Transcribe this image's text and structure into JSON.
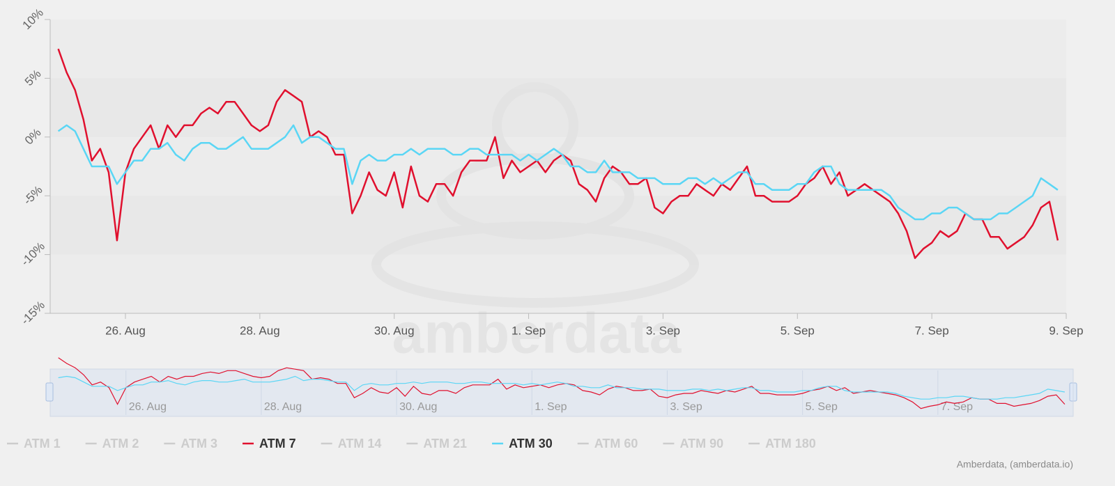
{
  "chart_data": {
    "type": "line",
    "watermark": "amberdata",
    "credit": "Amberdata, (amberdata.io)",
    "xlim": [
      24.88,
      40.0
    ],
    "ylim": [
      -15,
      10
    ],
    "xticks": [
      {
        "value": 26,
        "label": "26. Aug"
      },
      {
        "value": 28,
        "label": "28. Aug"
      },
      {
        "value": 30,
        "label": "30. Aug"
      },
      {
        "value": 32,
        "label": "1. Sep"
      },
      {
        "value": 34,
        "label": "3. Sep"
      },
      {
        "value": 36,
        "label": "5. Sep"
      },
      {
        "value": 38,
        "label": "7. Sep"
      },
      {
        "value": 40,
        "label": "9. Sep"
      }
    ],
    "yticks": [
      {
        "value": -15,
        "label": "-15%"
      },
      {
        "value": -10,
        "label": "-10%"
      },
      {
        "value": -5,
        "label": "-5%"
      },
      {
        "value": 0,
        "label": "0%"
      },
      {
        "value": 5,
        "label": "5%"
      },
      {
        "value": 10,
        "label": "10%"
      }
    ],
    "x": [
      25.0,
      25.125,
      25.25,
      25.375,
      25.5,
      25.625,
      25.75,
      25.875,
      26.0,
      26.125,
      26.25,
      26.375,
      26.5,
      26.625,
      26.75,
      26.875,
      27.0,
      27.125,
      27.25,
      27.375,
      27.5,
      27.625,
      27.75,
      27.875,
      28.0,
      28.125,
      28.25,
      28.375,
      28.5,
      28.625,
      28.75,
      28.875,
      29.0,
      29.125,
      29.25,
      29.375,
      29.5,
      29.625,
      29.75,
      29.875,
      30.0,
      30.125,
      30.25,
      30.375,
      30.5,
      30.625,
      30.75,
      30.875,
      31.0,
      31.125,
      31.25,
      31.375,
      31.5,
      31.625,
      31.75,
      31.875,
      32.0,
      32.125,
      32.25,
      32.375,
      32.5,
      32.625,
      32.75,
      32.875,
      33.0,
      33.125,
      33.25,
      33.375,
      33.5,
      33.625,
      33.75,
      33.875,
      34.0,
      34.125,
      34.25,
      34.375,
      34.5,
      34.625,
      34.75,
      34.875,
      35.0,
      35.125,
      35.25,
      35.375,
      35.5,
      35.625,
      35.75,
      35.875,
      36.0,
      36.125,
      36.25,
      36.375,
      36.5,
      36.625,
      36.75,
      36.875,
      37.0,
      37.125,
      37.25,
      37.375,
      37.5,
      37.625,
      37.75,
      37.875,
      38.0,
      38.125,
      38.25,
      38.375,
      38.5,
      38.625,
      38.75,
      38.875,
      39.0,
      39.125,
      39.25,
      39.375,
      39.5,
      39.625,
      39.75,
      39.875
    ],
    "series": [
      {
        "name": "ATM 1",
        "visible": false
      },
      {
        "name": "ATM 2",
        "visible": false
      },
      {
        "name": "ATM 3",
        "visible": false
      },
      {
        "name": "ATM 7",
        "visible": true,
        "color": "#e0102e",
        "values": [
          7.5,
          5.5,
          4,
          1.5,
          -2,
          -1,
          -3,
          -8.8,
          -3,
          -1,
          0,
          1,
          -1,
          1,
          0,
          1,
          1,
          2,
          2.5,
          2,
          3,
          3,
          2,
          1,
          0.5,
          1,
          3,
          4,
          3.5,
          3,
          0,
          0.5,
          0,
          -1.5,
          -1.5,
          -6.5,
          -5,
          -3,
          -4.5,
          -5,
          -3,
          -6,
          -2.5,
          -5,
          -5.5,
          -4,
          -4,
          -5,
          -3,
          -2,
          -2,
          -2,
          0,
          -3.5,
          -2,
          -3,
          -2.5,
          -2,
          -3,
          -2,
          -1.5,
          -2,
          -4,
          -4.5,
          -5.5,
          -3.5,
          -2.5,
          -3,
          -4,
          -4,
          -3.5,
          -6,
          -6.5,
          -5.5,
          -5,
          -5,
          -4,
          -4.5,
          -5,
          -4,
          -4.5,
          -3.5,
          -2.5,
          -5,
          -5,
          -5.5,
          -5.5,
          -5.5,
          -5,
          -4,
          -3.5,
          -2.5,
          -4,
          -3,
          -5,
          -4.5,
          -4,
          -4.5,
          -5,
          -5.5,
          -6.5,
          -8,
          -10.3,
          -9.5,
          -9,
          -8,
          -8.5,
          -8,
          -6.5,
          -7,
          -7,
          -8.5,
          -8.5,
          -9.5,
          -9,
          -8.5,
          -7.5,
          -6,
          -5.5,
          -8.8
        ]
      },
      {
        "name": "ATM 14",
        "visible": false
      },
      {
        "name": "ATM 21",
        "visible": false
      },
      {
        "name": "ATM 30",
        "visible": true,
        "color": "#5ad6f5",
        "values": [
          0.5,
          1,
          0.5,
          -1,
          -2.5,
          -2.5,
          -2.5,
          -4,
          -3,
          -2,
          -2,
          -1,
          -1,
          -0.5,
          -1.5,
          -2,
          -1,
          -0.5,
          -0.5,
          -1,
          -1,
          -0.5,
          0,
          -1,
          -1,
          -1,
          -0.5,
          0,
          1,
          -0.5,
          0,
          0,
          -0.5,
          -1,
          -1,
          -4,
          -2,
          -1.5,
          -2,
          -2,
          -1.5,
          -1.5,
          -1,
          -1.5,
          -1,
          -1,
          -1,
          -1.5,
          -1.5,
          -1,
          -1,
          -1.5,
          -1.5,
          -1.5,
          -1.5,
          -2,
          -1.5,
          -2,
          -1.5,
          -1,
          -1.5,
          -2.5,
          -2.5,
          -3,
          -3,
          -2,
          -3,
          -3,
          -3,
          -3.5,
          -3.5,
          -3.5,
          -4,
          -4,
          -4,
          -3.5,
          -3.5,
          -4,
          -3.5,
          -4,
          -3.5,
          -3,
          -3,
          -4,
          -4,
          -4.5,
          -4.5,
          -4.5,
          -4,
          -4,
          -3,
          -2.5,
          -2.5,
          -4,
          -4.5,
          -4.5,
          -4.5,
          -4.5,
          -4.5,
          -5,
          -6,
          -6.5,
          -7,
          -7,
          -6.5,
          -6.5,
          -6,
          -6,
          -6.5,
          -7,
          -7,
          -7,
          -6.5,
          -6.5,
          -6,
          -5.5,
          -5,
          -3.5,
          -4,
          -4.5
        ]
      },
      {
        "name": "ATM 60",
        "visible": false
      },
      {
        "name": "ATM 90",
        "visible": false
      },
      {
        "name": "ATM 180",
        "visible": false
      }
    ]
  }
}
